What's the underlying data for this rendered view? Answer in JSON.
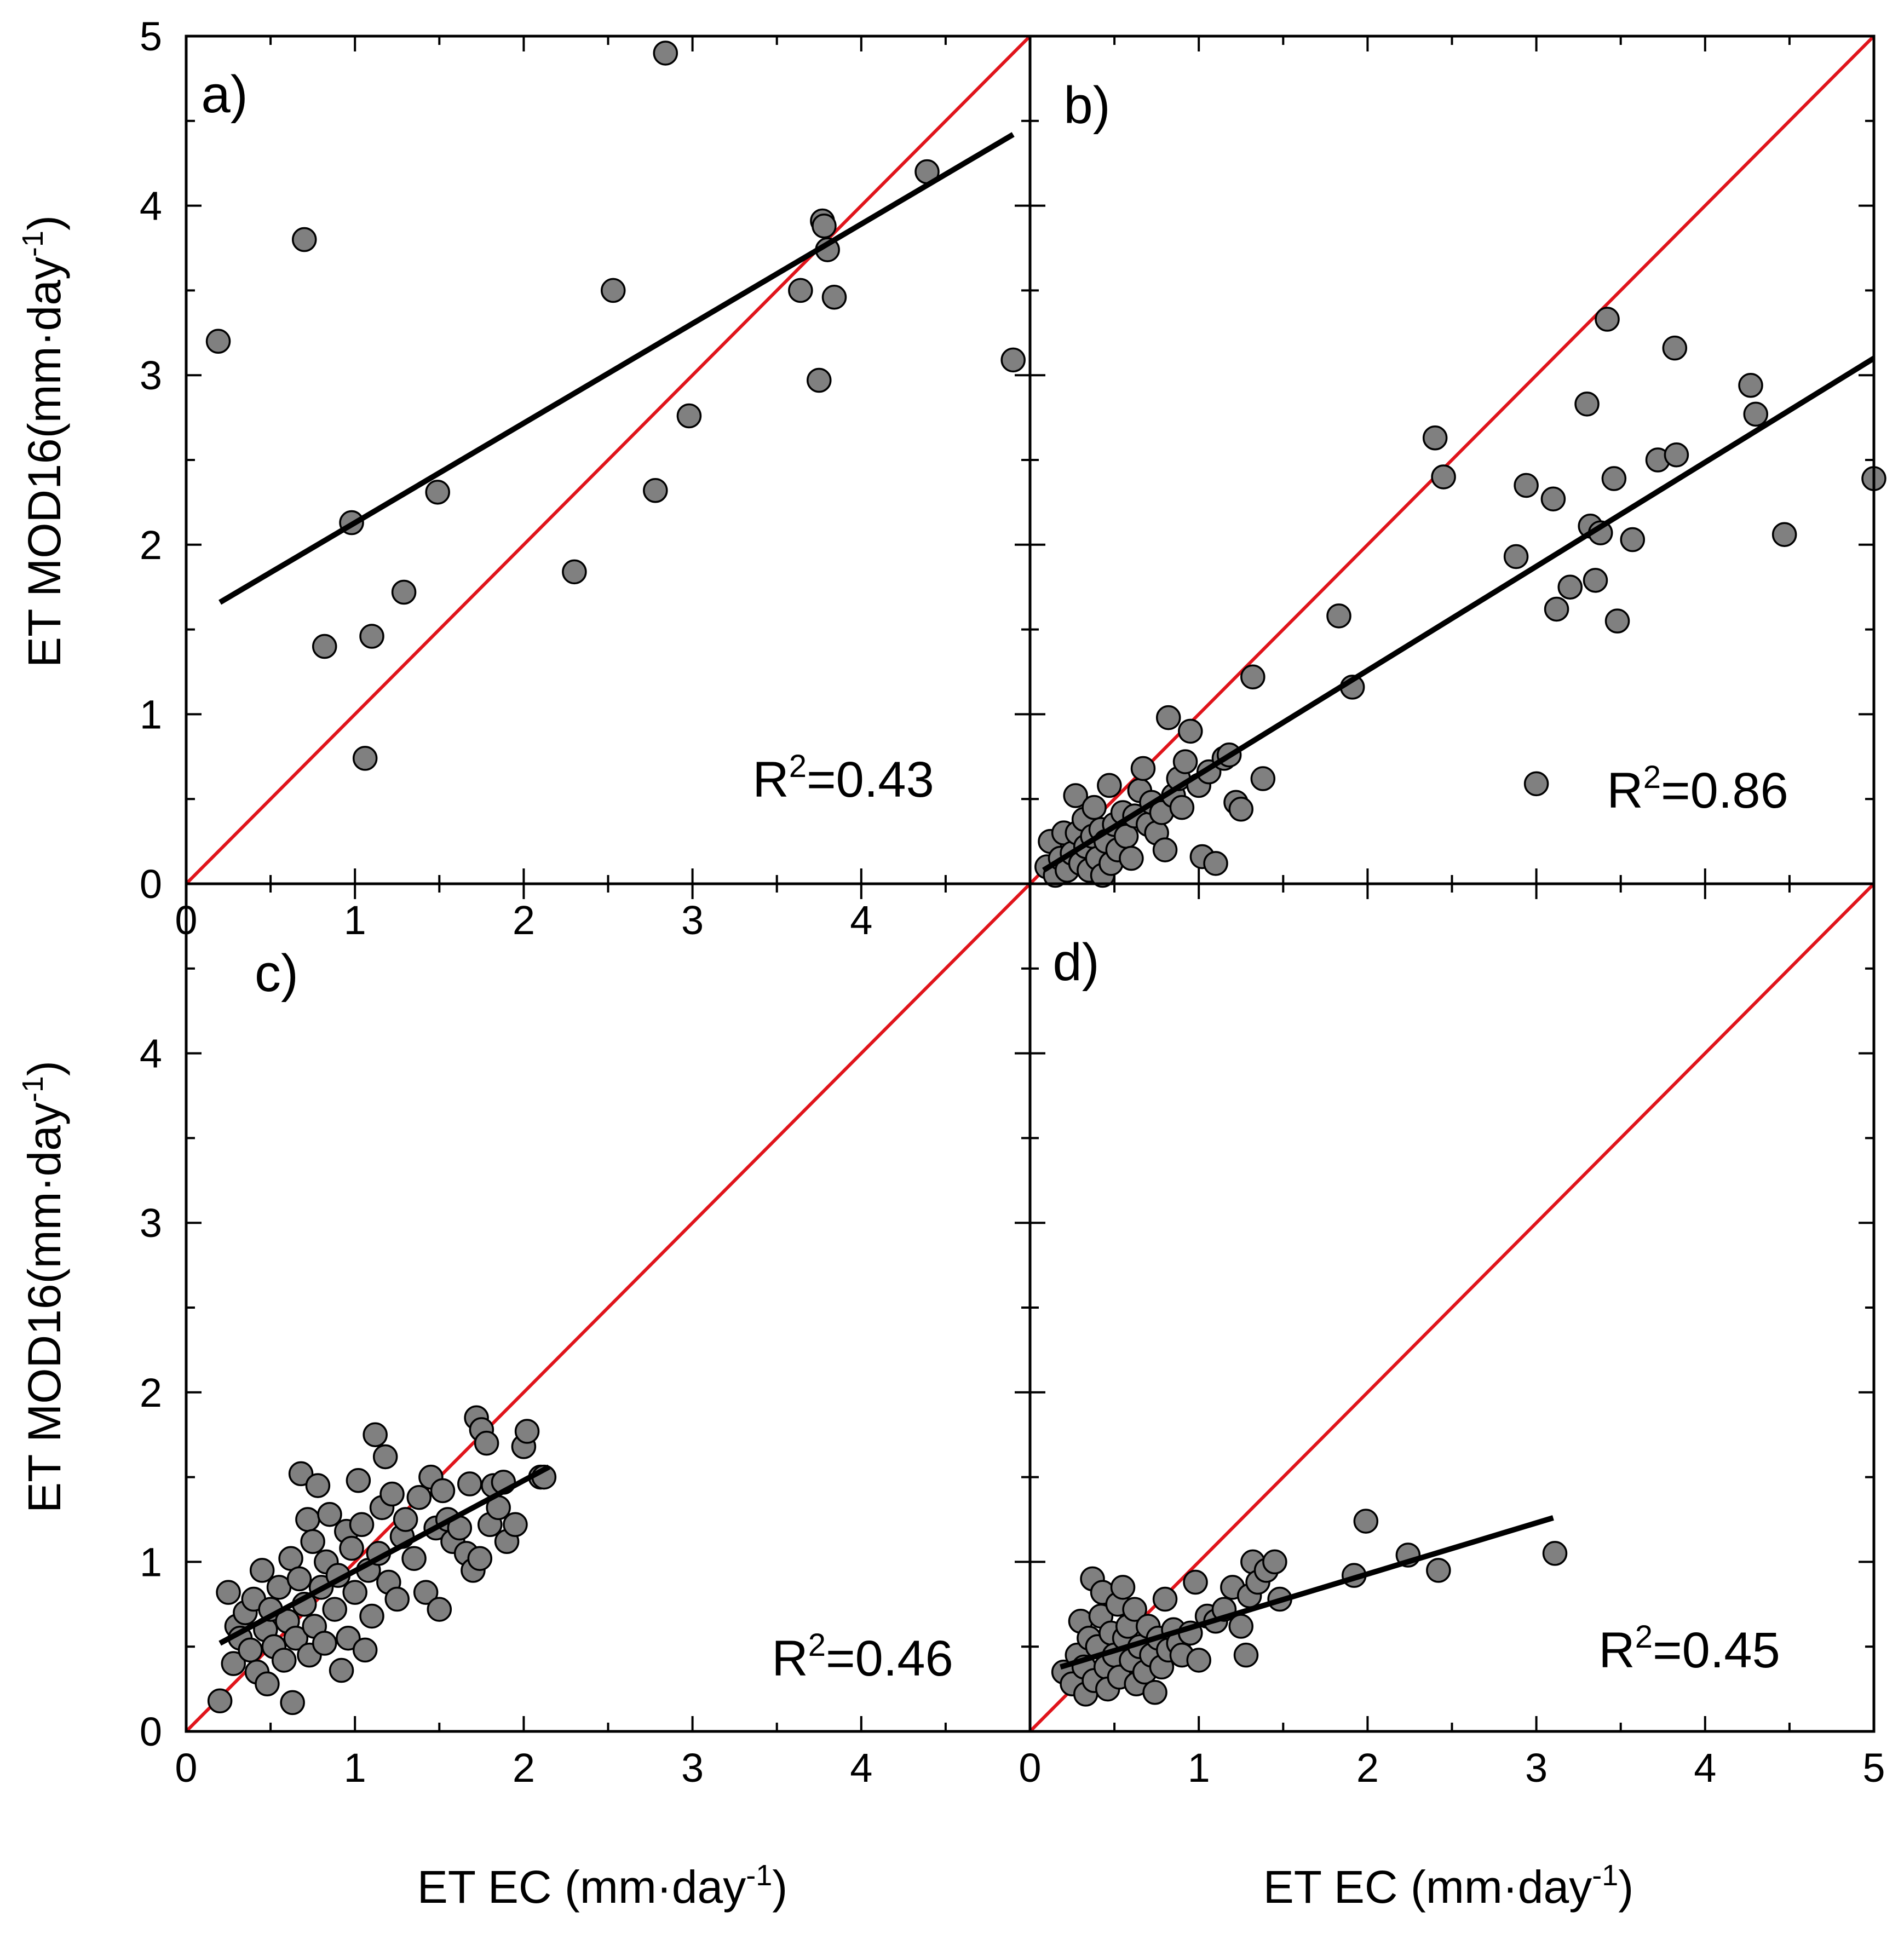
{
  "figure": {
    "y_axis_label": "ET MOD16(mm·day",
    "y_axis_label_sup": "-1",
    "y_axis_label_close": ")",
    "x_axis_label": "ET EC (mm·day",
    "x_axis_label_sup": "-1",
    "x_axis_label_close": ")",
    "colors": {
      "points": "#808080",
      "point_edge": "#000000",
      "one_to_one": "#e0141b",
      "fit": "#000000"
    }
  },
  "chart_data": [
    {
      "type": "scatter",
      "panel_label": "a)",
      "r2_prefix": "R",
      "r2_sup": "2",
      "r2_value": "=0.43",
      "xlim": [
        0,
        5
      ],
      "ylim": [
        0,
        5
      ],
      "x_ticks": [
        "0",
        "1",
        "2",
        "3",
        "4"
      ],
      "y_ticks": [
        "0",
        "1",
        "2",
        "3",
        "4",
        "5"
      ],
      "fit": {
        "x0": 0.2,
        "y0": 1.66,
        "x1": 4.9,
        "y1": 4.42
      },
      "points": [
        [
          0.19,
          3.2
        ],
        [
          0.7,
          3.8
        ],
        [
          0.82,
          1.4
        ],
        [
          0.98,
          2.13
        ],
        [
          1.06,
          0.74
        ],
        [
          1.1,
          1.46
        ],
        [
          1.29,
          1.72
        ],
        [
          1.49,
          2.31
        ],
        [
          2.3,
          1.84
        ],
        [
          2.53,
          3.5
        ],
        [
          2.78,
          2.32
        ],
        [
          2.84,
          4.9
        ],
        [
          2.98,
          2.76
        ],
        [
          3.64,
          3.5
        ],
        [
          3.75,
          2.97
        ],
        [
          3.77,
          3.91
        ],
        [
          3.78,
          3.88
        ],
        [
          3.8,
          3.74
        ],
        [
          3.84,
          3.46
        ],
        [
          4.39,
          4.2
        ],
        [
          4.9,
          3.09
        ]
      ]
    },
    {
      "type": "scatter",
      "panel_label": "b)",
      "r2_prefix": "R",
      "r2_sup": "2",
      "r2_value": "=0.86",
      "xlim": [
        0,
        5
      ],
      "ylim": [
        0,
        5
      ],
      "x_ticks": [],
      "y_ticks": [],
      "fit": {
        "x0": 0.08,
        "y0": 0.08,
        "x1": 5.0,
        "y1": 3.1
      },
      "points": [
        [
          0.1,
          0.1
        ],
        [
          0.12,
          0.25
        ],
        [
          0.15,
          0.05
        ],
        [
          0.18,
          0.15
        ],
        [
          0.2,
          0.3
        ],
        [
          0.22,
          0.08
        ],
        [
          0.25,
          0.18
        ],
        [
          0.27,
          0.52
        ],
        [
          0.28,
          0.3
        ],
        [
          0.3,
          0.12
        ],
        [
          0.32,
          0.38
        ],
        [
          0.33,
          0.22
        ],
        [
          0.35,
          0.08
        ],
        [
          0.37,
          0.28
        ],
        [
          0.38,
          0.45
        ],
        [
          0.4,
          0.15
        ],
        [
          0.42,
          0.32
        ],
        [
          0.43,
          0.05
        ],
        [
          0.45,
          0.25
        ],
        [
          0.47,
          0.58
        ],
        [
          0.48,
          0.12
        ],
        [
          0.5,
          0.35
        ],
        [
          0.52,
          0.2
        ],
        [
          0.55,
          0.42
        ],
        [
          0.57,
          0.28
        ],
        [
          0.6,
          0.15
        ],
        [
          0.62,
          0.4
        ],
        [
          0.65,
          0.55
        ],
        [
          0.67,
          0.68
        ],
        [
          0.7,
          0.35
        ],
        [
          0.72,
          0.48
        ],
        [
          0.75,
          0.3
        ],
        [
          0.78,
          0.42
        ],
        [
          0.8,
          0.2
        ],
        [
          0.82,
          0.98
        ],
        [
          0.85,
          0.52
        ],
        [
          0.88,
          0.62
        ],
        [
          0.9,
          0.45
        ],
        [
          0.92,
          0.72
        ],
        [
          0.95,
          0.9
        ],
        [
          1.0,
          0.58
        ],
        [
          1.02,
          0.16
        ],
        [
          1.06,
          0.66
        ],
        [
          1.1,
          0.12
        ],
        [
          1.15,
          0.74
        ],
        [
          1.18,
          0.76
        ],
        [
          1.22,
          0.48
        ],
        [
          1.25,
          0.44
        ],
        [
          1.32,
          1.22
        ],
        [
          1.38,
          0.62
        ],
        [
          1.83,
          1.58
        ],
        [
          1.91,
          1.16
        ],
        [
          2.4,
          2.63
        ],
        [
          2.45,
          2.4
        ],
        [
          2.88,
          1.93
        ],
        [
          2.94,
          2.35
        ],
        [
          3.0,
          0.59
        ],
        [
          3.1,
          2.27
        ],
        [
          3.12,
          1.62
        ],
        [
          3.2,
          1.75
        ],
        [
          3.3,
          2.83
        ],
        [
          3.32,
          2.11
        ],
        [
          3.35,
          1.79
        ],
        [
          3.38,
          2.07
        ],
        [
          3.42,
          3.33
        ],
        [
          3.46,
          2.39
        ],
        [
          3.48,
          1.55
        ],
        [
          3.57,
          2.03
        ],
        [
          3.72,
          2.5
        ],
        [
          3.82,
          3.16
        ],
        [
          3.83,
          2.53
        ],
        [
          4.27,
          2.94
        ],
        [
          4.3,
          2.77
        ],
        [
          4.47,
          2.06
        ],
        [
          5.0,
          2.39
        ]
      ]
    },
    {
      "type": "scatter",
      "panel_label": "c)",
      "r2_prefix": "R",
      "r2_sup": "2",
      "r2_value": "=0.46",
      "xlim": [
        0,
        5
      ],
      "ylim": [
        0,
        5
      ],
      "x_ticks": [
        "0",
        "1",
        "2",
        "3",
        "4"
      ],
      "y_ticks": [
        "0",
        "1",
        "2",
        "3",
        "4"
      ],
      "fit": {
        "x0": 0.2,
        "y0": 0.52,
        "x1": 2.15,
        "y1": 1.56
      },
      "points": [
        [
          0.2,
          0.18
        ],
        [
          0.25,
          0.82
        ],
        [
          0.28,
          0.4
        ],
        [
          0.3,
          0.62
        ],
        [
          0.32,
          0.55
        ],
        [
          0.35,
          0.7
        ],
        [
          0.38,
          0.48
        ],
        [
          0.4,
          0.78
        ],
        [
          0.42,
          0.35
        ],
        [
          0.45,
          0.95
        ],
        [
          0.47,
          0.6
        ],
        [
          0.48,
          0.28
        ],
        [
          0.5,
          0.72
        ],
        [
          0.52,
          0.5
        ],
        [
          0.55,
          0.85
        ],
        [
          0.58,
          0.42
        ],
        [
          0.6,
          0.65
        ],
        [
          0.62,
          1.02
        ],
        [
          0.63,
          0.17
        ],
        [
          0.65,
          0.55
        ],
        [
          0.67,
          0.9
        ],
        [
          0.68,
          1.52
        ],
        [
          0.7,
          0.75
        ],
        [
          0.72,
          1.25
        ],
        [
          0.73,
          0.45
        ],
        [
          0.75,
          1.12
        ],
        [
          0.76,
          0.62
        ],
        [
          0.78,
          1.45
        ],
        [
          0.8,
          0.85
        ],
        [
          0.82,
          0.52
        ],
        [
          0.83,
          1.0
        ],
        [
          0.85,
          1.28
        ],
        [
          0.88,
          0.72
        ],
        [
          0.9,
          0.92
        ],
        [
          0.92,
          0.36
        ],
        [
          0.95,
          1.18
        ],
        [
          0.96,
          0.55
        ],
        [
          0.98,
          1.08
        ],
        [
          1.0,
          0.82
        ],
        [
          1.02,
          1.48
        ],
        [
          1.04,
          1.22
        ],
        [
          1.06,
          0.48
        ],
        [
          1.08,
          0.95
        ],
        [
          1.1,
          0.68
        ],
        [
          1.12,
          1.75
        ],
        [
          1.14,
          1.05
        ],
        [
          1.16,
          1.32
        ],
        [
          1.18,
          1.62
        ],
        [
          1.2,
          0.88
        ],
        [
          1.22,
          1.4
        ],
        [
          1.25,
          0.78
        ],
        [
          1.28,
          1.15
        ],
        [
          1.3,
          1.25
        ],
        [
          1.35,
          1.02
        ],
        [
          1.38,
          1.38
        ],
        [
          1.42,
          0.82
        ],
        [
          1.45,
          1.5
        ],
        [
          1.48,
          1.2
        ],
        [
          1.5,
          0.72
        ],
        [
          1.52,
          1.42
        ],
        [
          1.55,
          1.25
        ],
        [
          1.58,
          1.12
        ],
        [
          1.62,
          1.2
        ],
        [
          1.66,
          1.05
        ],
        [
          1.68,
          1.46
        ],
        [
          1.7,
          0.95
        ],
        [
          1.72,
          1.85
        ],
        [
          1.74,
          1.02
        ],
        [
          1.75,
          1.78
        ],
        [
          1.78,
          1.7
        ],
        [
          1.8,
          1.22
        ],
        [
          1.82,
          1.45
        ],
        [
          1.85,
          1.32
        ],
        [
          1.88,
          1.47
        ],
        [
          1.9,
          1.12
        ],
        [
          1.95,
          1.22
        ],
        [
          2.0,
          1.68
        ],
        [
          2.02,
          1.77
        ],
        [
          2.1,
          1.5
        ],
        [
          2.12,
          1.5
        ]
      ]
    },
    {
      "type": "scatter",
      "panel_label": "d)",
      "r2_prefix": "R",
      "r2_sup": "2",
      "r2_value": "=0.45",
      "xlim": [
        0,
        5
      ],
      "ylim": [
        0,
        5
      ],
      "x_ticks": [
        "0",
        "1",
        "2",
        "3",
        "4",
        "5"
      ],
      "y_ticks": [],
      "fit": {
        "x0": 0.18,
        "y0": 0.38,
        "x1": 3.1,
        "y1": 1.26
      },
      "points": [
        [
          0.2,
          0.35
        ],
        [
          0.25,
          0.28
        ],
        [
          0.28,
          0.45
        ],
        [
          0.3,
          0.65
        ],
        [
          0.32,
          0.38
        ],
        [
          0.33,
          0.22
        ],
        [
          0.35,
          0.55
        ],
        [
          0.37,
          0.9
        ],
        [
          0.38,
          0.3
        ],
        [
          0.4,
          0.5
        ],
        [
          0.42,
          0.68
        ],
        [
          0.43,
          0.82
        ],
        [
          0.45,
          0.38
        ],
        [
          0.46,
          0.25
        ],
        [
          0.48,
          0.58
        ],
        [
          0.5,
          0.45
        ],
        [
          0.52,
          0.75
        ],
        [
          0.53,
          0.32
        ],
        [
          0.55,
          0.85
        ],
        [
          0.56,
          0.55
        ],
        [
          0.58,
          0.62
        ],
        [
          0.6,
          0.42
        ],
        [
          0.62,
          0.72
        ],
        [
          0.63,
          0.28
        ],
        [
          0.65,
          0.5
        ],
        [
          0.68,
          0.35
        ],
        [
          0.7,
          0.62
        ],
        [
          0.72,
          0.45
        ],
        [
          0.74,
          0.23
        ],
        [
          0.76,
          0.55
        ],
        [
          0.78,
          0.38
        ],
        [
          0.8,
          0.78
        ],
        [
          0.82,
          0.48
        ],
        [
          0.85,
          0.6
        ],
        [
          0.88,
          0.52
        ],
        [
          0.9,
          0.45
        ],
        [
          0.95,
          0.58
        ],
        [
          0.98,
          0.88
        ],
        [
          1.0,
          0.42
        ],
        [
          1.05,
          0.68
        ],
        [
          1.1,
          0.65
        ],
        [
          1.15,
          0.72
        ],
        [
          1.2,
          0.85
        ],
        [
          1.25,
          0.62
        ],
        [
          1.28,
          0.45
        ],
        [
          1.3,
          0.8
        ],
        [
          1.32,
          1.0
        ],
        [
          1.35,
          0.88
        ],
        [
          1.4,
          0.95
        ],
        [
          1.45,
          1.0
        ],
        [
          1.48,
          0.78
        ],
        [
          1.92,
          0.92
        ],
        [
          1.99,
          1.24
        ],
        [
          2.24,
          1.04
        ],
        [
          2.42,
          0.95
        ],
        [
          3.11,
          1.05
        ]
      ]
    }
  ]
}
